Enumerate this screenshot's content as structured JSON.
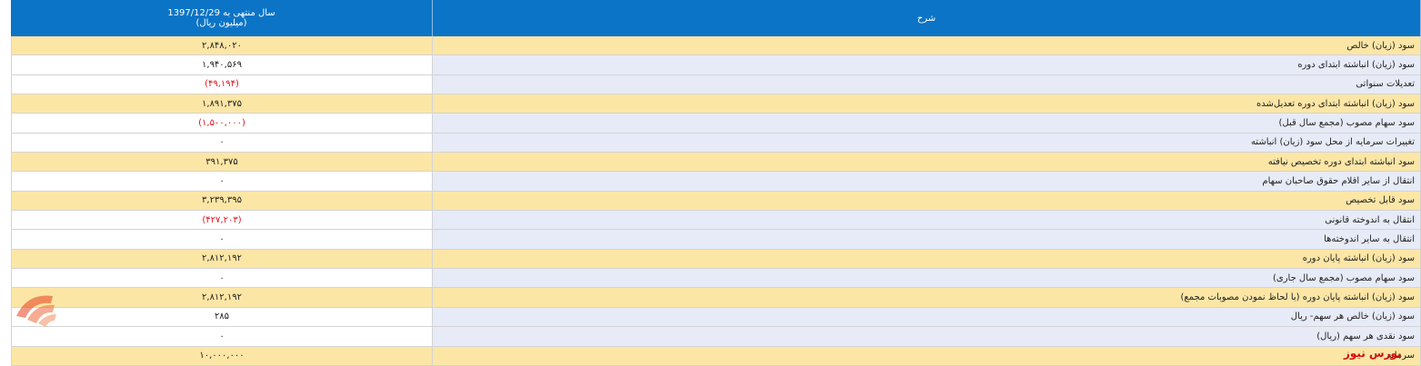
{
  "header": {
    "period": "سال منتهی به 1397/12/29",
    "unit": "(میلیون ریال)",
    "description": "شرح"
  },
  "table": {
    "rows": [
      {
        "description": "سود (زیان) خالص",
        "value": "۲,۸۴۸,۰۲۰",
        "highlighted": true
      },
      {
        "description": "سود (زیان) انباشته ابتدای دوره",
        "value": "۱,۹۴۰,۵۶۹",
        "highlighted": false
      },
      {
        "description": "تعدیلات سنواتی",
        "value": "(۴۹,۱۹۴)",
        "highlighted": false
      },
      {
        "description": "سود (زیان) انباشته ابتدای دوره تعدیل‌شده",
        "value": "۱,۸۹۱,۳۷۵",
        "highlighted": true
      },
      {
        "description": "سود سهام مصوب (مجمع سال قبل)",
        "value": "(۱,۵۰۰,۰۰۰)",
        "highlighted": false
      },
      {
        "description": "تغییرات سرمایه از محل سود (زیان) انباشته",
        "value": "۰",
        "highlighted": false
      },
      {
        "description": "سود انباشته ابتدای دوره تخصیص نیافته",
        "value": "۳۹۱,۳۷۵",
        "highlighted": true
      },
      {
        "description": "انتقال از سایر اقلام حقوق صاحبان سهام",
        "value": "۰",
        "highlighted": false
      },
      {
        "description": "سود قابل تخصیص",
        "value": "۳,۲۳۹,۳۹۵",
        "highlighted": true
      },
      {
        "description": "انتقال به اندوخته قانونی",
        "value": "(۴۲۷,۲۰۳)",
        "highlighted": false
      },
      {
        "description": "انتقال به سایر اندوخته‌ها",
        "value": "۰",
        "highlighted": false
      },
      {
        "description": "سود (زیان) انباشته پایان دوره",
        "value": "۲,۸۱۲,۱۹۲",
        "highlighted": true
      },
      {
        "description": "سود سهام مصوب (مجمع سال جاری)",
        "value": "۰",
        "highlighted": false
      },
      {
        "description": "سود (زیان) انباشته پایان دوره (با لحاظ نمودن مصوبات مجمع)",
        "value": "۲,۸۱۲,۱۹۲",
        "highlighted": true
      },
      {
        "description": "سود (زیان) خالص هر سهم- ریال",
        "value": "۲۸۵",
        "highlighted": false
      },
      {
        "description": "سود نقدی هر سهم (ریال)",
        "value": "۰",
        "highlighted": false
      },
      {
        "description": "سرمایه",
        "value": "۱۰,۰۰۰,۰۰۰",
        "highlighted": true
      }
    ]
  },
  "watermark": "بورس نیوز"
}
